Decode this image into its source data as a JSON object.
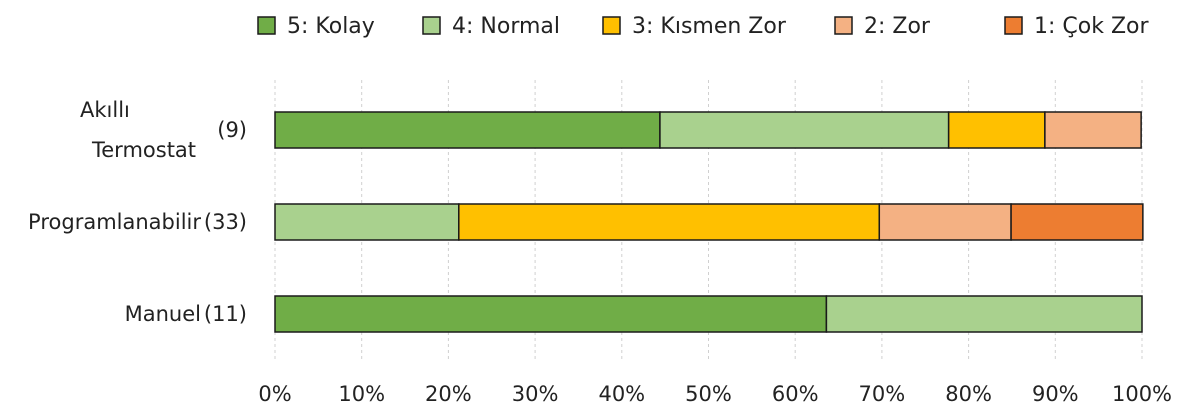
{
  "chart_data": {
    "type": "bar",
    "orientation": "horizontal",
    "stacked": "percent",
    "categories": [
      {
        "label_lines": [
          "Akıllı",
          "Termostat"
        ],
        "count": "(9)"
      },
      {
        "label_lines": [
          "Programlanabilir"
        ],
        "count": "(33)"
      },
      {
        "label_lines": [
          "Manuel"
        ],
        "count": "(11)"
      }
    ],
    "series": [
      {
        "name": "5: Kolay",
        "color": "#70ad47",
        "values": [
          44.4,
          0,
          63.6
        ]
      },
      {
        "name": "4: Normal",
        "color": "#a9d18e",
        "values": [
          33.3,
          21.2,
          36.4
        ]
      },
      {
        "name": "3: Kısmen Zor",
        "color": "#ffc000",
        "values": [
          11.1,
          48.5,
          0
        ]
      },
      {
        "name": "2: Zor",
        "color": "#f4b183",
        "values": [
          11.1,
          15.2,
          0
        ]
      },
      {
        "name": "1: Çok Zor",
        "color": "#ed7d31",
        "values": [
          0,
          15.2,
          0
        ]
      }
    ],
    "xlim": [
      0,
      100
    ],
    "x_ticks": [
      "0%",
      "10%",
      "20%",
      "30%",
      "40%",
      "50%",
      "60%",
      "70%",
      "80%",
      "90%",
      "100%"
    ],
    "legend_position": "top",
    "grid": true
  }
}
